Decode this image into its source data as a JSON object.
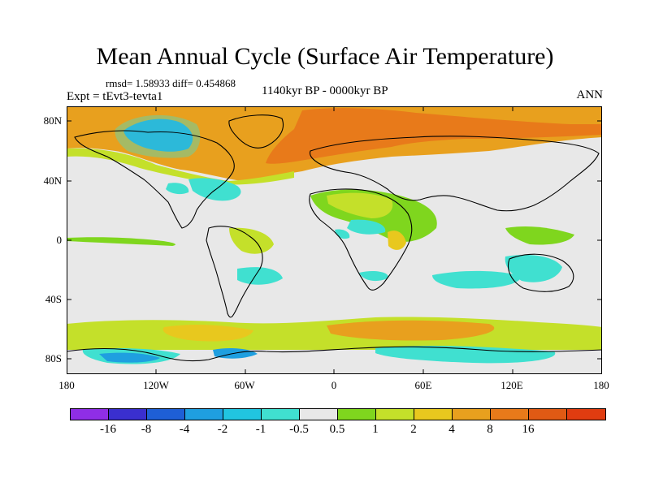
{
  "title": "Mean Annual Cycle (Surface Air Temperature)",
  "stats": "rmsd= 1.58933 diff= 0.454868",
  "expt": "Expt = tEvt3-tevta1",
  "subtitle": "1140kyr BP - 0000kyr BP",
  "season": "ANN",
  "lat_labels": [
    "80N",
    "40N",
    "0",
    "40S",
    "80S"
  ],
  "lon_labels": [
    "180",
    "120W",
    "60W",
    "0",
    "60E",
    "120E",
    "180"
  ],
  "colorbar": {
    "colors": [
      "#8f2ee6",
      "#3a2fcf",
      "#1e5fd6",
      "#1f9fe0",
      "#21c5e0",
      "#40e0d0",
      "#e8e8e8",
      "#7fd61e",
      "#c4e02a",
      "#e8c81e",
      "#e8a01e",
      "#e87a1a",
      "#e05a14",
      "#e03c10"
    ],
    "labels": [
      "-16",
      "-8",
      "-4",
      "-2",
      "-1",
      "-0.5",
      "0.5",
      "1",
      "2",
      "4",
      "8",
      "16"
    ]
  }
}
